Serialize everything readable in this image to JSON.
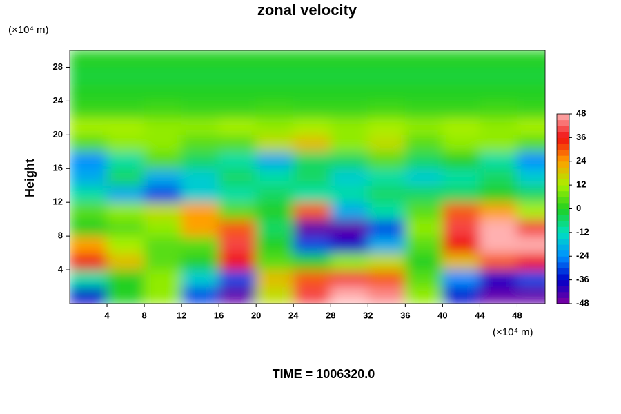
{
  "chart_data": {
    "type": "heatmap",
    "title": "zonal velocity",
    "ylabel": "Height",
    "x_unit": "(×10⁴ m)",
    "y_unit": "(×10⁴ m)",
    "footer": "TIME = 1006320.0",
    "xlim": [
      0,
      51
    ],
    "ylim": [
      0,
      30
    ],
    "xticks": [
      4,
      8,
      12,
      16,
      20,
      24,
      28,
      32,
      36,
      40,
      44,
      48
    ],
    "yticks": [
      4,
      8,
      12,
      16,
      20,
      24,
      28
    ],
    "x": [
      2,
      6,
      10,
      14,
      18,
      22,
      26,
      30,
      34,
      38,
      42,
      46,
      50
    ],
    "y": [
      1,
      3,
      5,
      7,
      9,
      11,
      13,
      15,
      17,
      19,
      21,
      23,
      25,
      27,
      29
    ],
    "z": [
      [
        -36,
        0,
        10,
        -30,
        -45,
        15,
        40,
        48,
        45,
        10,
        -35,
        -45,
        -45
      ],
      [
        -10,
        0,
        10,
        -15,
        -30,
        20,
        30,
        40,
        30,
        5,
        -24,
        -36,
        -30
      ],
      [
        36,
        20,
        5,
        0,
        36,
        5,
        0,
        10,
        15,
        0,
        20,
        30,
        36
      ],
      [
        24,
        12,
        5,
        5,
        40,
        0,
        -30,
        -36,
        -20,
        5,
        36,
        48,
        48
      ],
      [
        0,
        5,
        10,
        24,
        30,
        -5,
        -45,
        -45,
        -30,
        10,
        40,
        48,
        40
      ],
      [
        5,
        10,
        15,
        24,
        5,
        0,
        30,
        -20,
        -10,
        5,
        30,
        24,
        12
      ],
      [
        -10,
        -20,
        -30,
        -15,
        -10,
        -5,
        -10,
        -10,
        -5,
        -5,
        -5,
        0,
        -5
      ],
      [
        -20,
        -5,
        -20,
        -15,
        -5,
        -10,
        -5,
        -15,
        -10,
        -15,
        -10,
        -5,
        -15
      ],
      [
        -24,
        -10,
        5,
        -5,
        -10,
        -20,
        -5,
        -5,
        5,
        -5,
        0,
        -10,
        -24
      ],
      [
        5,
        10,
        10,
        5,
        5,
        15,
        20,
        10,
        15,
        5,
        10,
        10,
        5
      ],
      [
        12,
        12,
        10,
        10,
        12,
        10,
        12,
        10,
        12,
        10,
        12,
        10,
        12
      ],
      [
        2,
        2,
        3,
        2,
        2,
        3,
        2,
        2,
        3,
        2,
        2,
        3,
        2
      ],
      [
        0,
        0,
        0,
        0,
        0,
        0,
        0,
        0,
        0,
        0,
        0,
        0,
        0
      ],
      [
        -2,
        -2,
        -2,
        -2,
        -2,
        -2,
        -2,
        -2,
        -2,
        -2,
        -2,
        -2,
        -2
      ],
      [
        0,
        0,
        0,
        0,
        0,
        0,
        0,
        0,
        0,
        0,
        0,
        0,
        0
      ]
    ],
    "colorbar": {
      "ticks": [
        -48,
        -36,
        -24,
        -12,
        0,
        12,
        24,
        36,
        48
      ],
      "colors": [
        "#8000a0",
        "#0000c8",
        "#0090ff",
        "#00e0c0",
        "#20d020",
        "#a8f000",
        "#ffa000",
        "#f01010",
        "#ffb0b0"
      ]
    }
  }
}
